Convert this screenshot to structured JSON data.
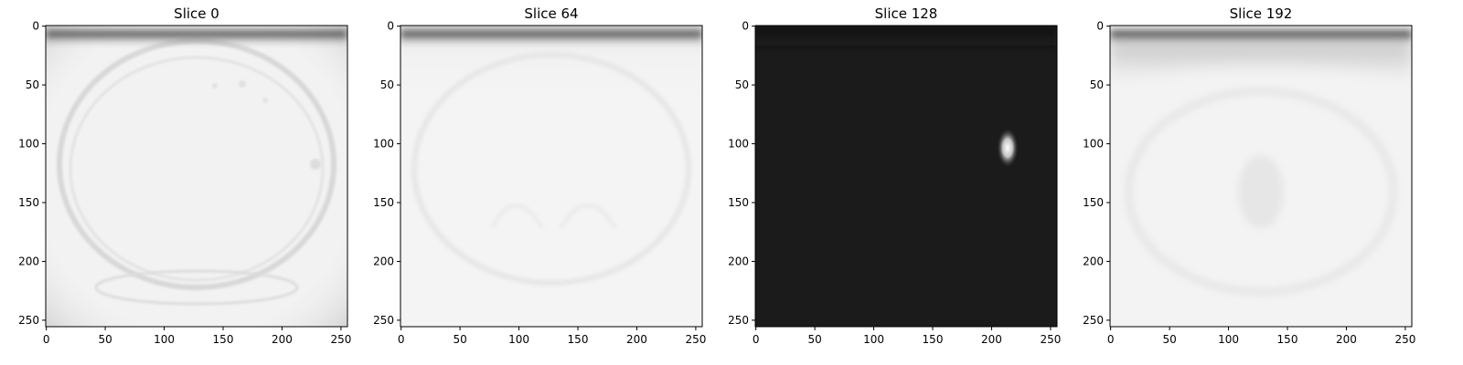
{
  "figure": {
    "panels": [
      {
        "title": "Slice 0",
        "variant": "light-body",
        "colors": {
          "background": "#f2f2f2",
          "top_band": "#1c1c1c"
        }
      },
      {
        "title": "Slice 64",
        "variant": "light-smooth",
        "colors": {
          "background": "#f4f4f4",
          "top_band": "#1a1a1a"
        }
      },
      {
        "title": "Slice 128",
        "variant": "dark-spot",
        "colors": {
          "background": "#1b1b1b",
          "top_band": "#0c0c0c",
          "spot": "#ffffff"
        }
      },
      {
        "title": "Slice 192",
        "variant": "light-shadow",
        "colors": {
          "background": "#f3f3f3",
          "top_band": "#1c1c1c"
        }
      }
    ],
    "axis": {
      "x_ticks": [
        "0",
        "50",
        "100",
        "150",
        "200",
        "250"
      ],
      "y_ticks": [
        "0",
        "50",
        "100",
        "150",
        "200",
        "250"
      ]
    }
  }
}
